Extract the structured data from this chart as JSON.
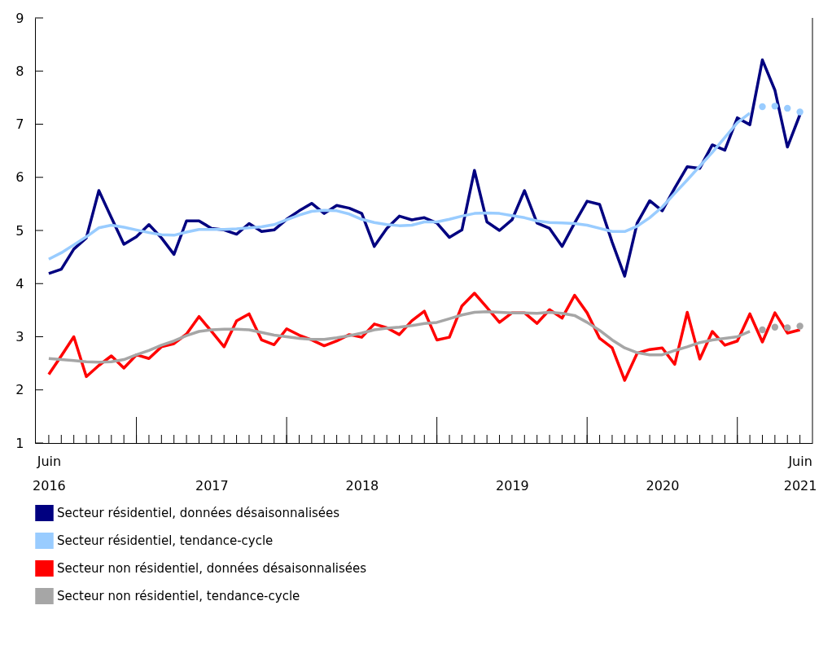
{
  "chart_data": {
    "type": "line",
    "categories": [
      "Juin 2016",
      null,
      null,
      null,
      null,
      null,
      null,
      null,
      null,
      null,
      null,
      null,
      null,
      "2017",
      null,
      null,
      null,
      null,
      null,
      null,
      null,
      null,
      null,
      null,
      null,
      "2018",
      null,
      null,
      null,
      null,
      null,
      null,
      null,
      null,
      null,
      null,
      null,
      "2019",
      null,
      null,
      null,
      null,
      null,
      null,
      null,
      null,
      null,
      null,
      null,
      "2020",
      null,
      null,
      null,
      null,
      null,
      null,
      null,
      null,
      null,
      null,
      "Juin 2021"
    ],
    "series": [
      {
        "name": "Secteur résidentiel, données désaisonnalisées",
        "color": "#000080",
        "values": [
          4.19,
          4.27,
          4.65,
          4.86,
          5.75,
          5.24,
          4.74,
          4.88,
          5.11,
          4.86,
          4.55,
          5.18,
          5.18,
          5.04,
          5.01,
          4.93,
          5.13,
          4.98,
          5.01,
          5.21,
          5.37,
          5.51,
          5.32,
          5.47,
          5.42,
          5.32,
          4.7,
          5.04,
          5.27,
          5.2,
          5.24,
          5.14,
          4.87,
          5.01,
          6.13,
          5.16,
          5.0,
          5.2,
          5.75,
          5.14,
          5.04,
          4.7,
          5.14,
          5.55,
          5.49,
          4.78,
          4.14,
          5.14,
          5.56,
          5.37,
          5.8,
          6.2,
          6.17,
          6.61,
          6.51,
          7.12,
          6.99,
          8.21,
          7.64,
          6.57,
          7.18
        ]
      },
      {
        "name": "Secteur résidentiel, tendance-cycle",
        "color": "#99ccff",
        "values": [
          4.46,
          4.58,
          4.73,
          4.88,
          5.05,
          5.1,
          5.06,
          5.01,
          4.96,
          4.92,
          4.91,
          4.97,
          5.02,
          5.02,
          5.02,
          5.03,
          5.05,
          5.07,
          5.11,
          5.2,
          5.29,
          5.36,
          5.38,
          5.37,
          5.31,
          5.21,
          5.15,
          5.11,
          5.09,
          5.1,
          5.16,
          5.16,
          5.21,
          5.27,
          5.32,
          5.33,
          5.32,
          5.28,
          5.24,
          5.18,
          5.15,
          5.14,
          5.13,
          5.1,
          5.04,
          4.98,
          4.98,
          5.08,
          5.24,
          5.44,
          5.7,
          5.95,
          6.21,
          6.47,
          6.75,
          7.03,
          7.21,
          null,
          null,
          null,
          null
        ]
      },
      {
        "type": "scatter",
        "marker": "circle",
        "color": "#99ccff",
        "values": [
          null,
          null,
          null,
          null,
          null,
          null,
          null,
          null,
          null,
          null,
          null,
          null,
          null,
          null,
          null,
          null,
          null,
          null,
          null,
          null,
          null,
          null,
          null,
          null,
          null,
          null,
          null,
          null,
          null,
          null,
          null,
          null,
          null,
          null,
          null,
          null,
          null,
          null,
          null,
          null,
          null,
          null,
          null,
          null,
          null,
          null,
          null,
          null,
          null,
          null,
          null,
          null,
          null,
          null,
          null,
          null,
          null,
          7.33,
          7.34,
          7.3,
          7.23
        ]
      },
      {
        "name": "Secteur non résidentiel, données désaisonnalisées",
        "color": "#ff0000",
        "values": [
          2.29,
          2.64,
          3.0,
          2.25,
          2.46,
          2.64,
          2.41,
          2.66,
          2.59,
          2.81,
          2.87,
          3.05,
          3.38,
          3.1,
          2.81,
          3.3,
          3.43,
          2.94,
          2.85,
          3.15,
          3.03,
          2.94,
          2.83,
          2.92,
          3.04,
          2.99,
          3.24,
          3.17,
          3.04,
          3.3,
          3.48,
          2.94,
          2.99,
          3.58,
          3.82,
          3.55,
          3.27,
          3.45,
          3.45,
          3.25,
          3.51,
          3.35,
          3.78,
          3.45,
          2.97,
          2.79,
          2.18,
          2.69,
          2.76,
          2.79,
          2.48,
          3.46,
          2.58,
          3.1,
          2.84,
          2.92,
          3.43,
          2.9,
          3.45,
          3.07,
          3.13
        ]
      },
      {
        "name": "Secteur non résidentiel, tendance-cycle",
        "color": "#a6a6a6",
        "values": [
          2.59,
          2.57,
          2.55,
          2.53,
          2.52,
          2.53,
          2.57,
          2.66,
          2.74,
          2.84,
          2.92,
          3.02,
          3.1,
          3.13,
          3.14,
          3.14,
          3.13,
          3.08,
          3.03,
          3.0,
          2.97,
          2.95,
          2.95,
          2.98,
          3.02,
          3.07,
          3.13,
          3.16,
          3.18,
          3.21,
          3.25,
          3.27,
          3.34,
          3.41,
          3.46,
          3.47,
          3.46,
          3.45,
          3.45,
          3.44,
          3.46,
          3.44,
          3.4,
          3.27,
          3.12,
          2.94,
          2.79,
          2.7,
          2.66,
          2.66,
          2.74,
          2.81,
          2.89,
          2.94,
          2.97,
          3.0,
          3.1,
          null,
          null,
          null,
          null
        ]
      },
      {
        "type": "scatter",
        "marker": "circle",
        "color": "#a6a6a6",
        "values": [
          null,
          null,
          null,
          null,
          null,
          null,
          null,
          null,
          null,
          null,
          null,
          null,
          null,
          null,
          null,
          null,
          null,
          null,
          null,
          null,
          null,
          null,
          null,
          null,
          null,
          null,
          null,
          null,
          null,
          null,
          null,
          null,
          null,
          null,
          null,
          null,
          null,
          null,
          null,
          null,
          null,
          null,
          null,
          null,
          null,
          null,
          null,
          null,
          null,
          null,
          null,
          null,
          null,
          null,
          null,
          null,
          null,
          3.13,
          3.18,
          3.17,
          3.2
        ]
      }
    ],
    "ylim": [
      1,
      9
    ],
    "yticks": [
      1,
      2,
      3,
      4,
      5,
      6,
      7,
      8,
      9
    ],
    "grid": false,
    "legend": "bottom"
  }
}
